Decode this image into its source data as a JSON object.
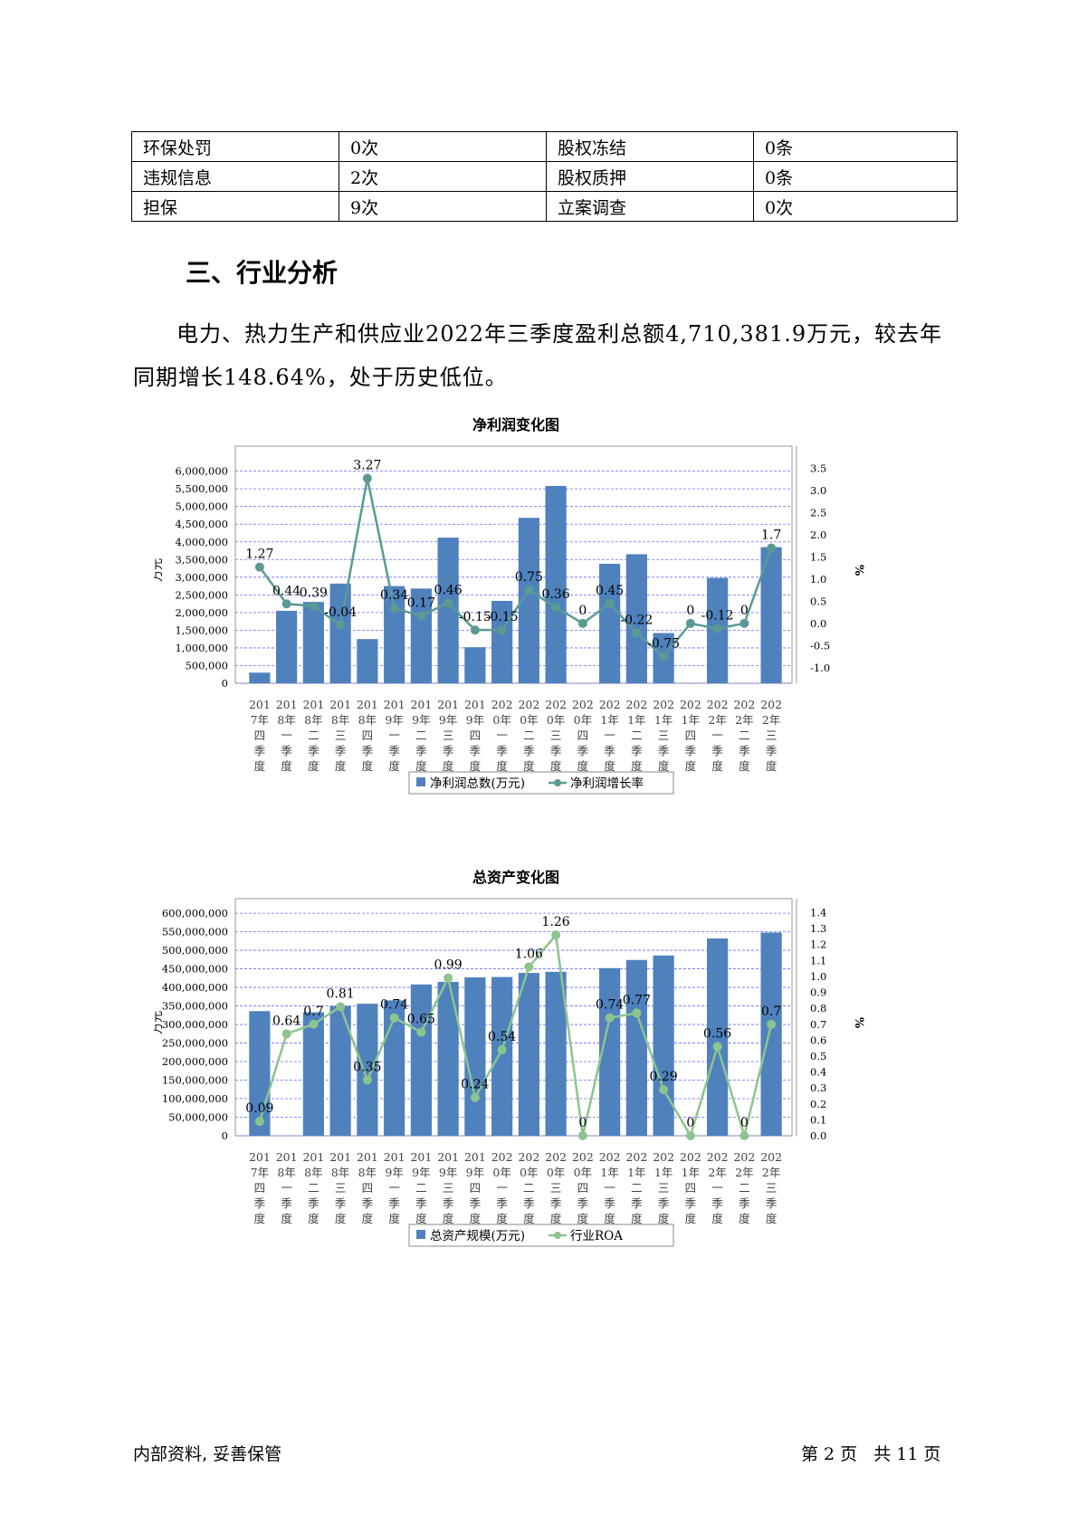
{
  "table": {
    "rows": [
      [
        "环保处罚",
        "0次",
        "股权冻结",
        "0条"
      ],
      [
        "违规信息",
        "2次",
        "股权质押",
        "0条"
      ],
      [
        "担保",
        "9次",
        "立案调查",
        "0次"
      ]
    ]
  },
  "section_title": "三、行业分析",
  "paragraph": "电力、热力生产和供应业2022年三季度盈利总额4,710,381.9万元，较去年同期增长148.64%，处于历史低位。",
  "colors": {
    "bar": "#4f81bd",
    "line1": "#5a9a94",
    "line2": "#8cc48e",
    "grid": "#6a6aff"
  },
  "chart_data": [
    {
      "type": "bar",
      "title": "净利润变化图",
      "categories": [
        "2017年四季度",
        "2018年一季度",
        "2018年二季度",
        "2018年三季度",
        "2018年四季度",
        "2019年一季度",
        "2019年二季度",
        "2019年三季度",
        "2019年四季度",
        "2020年一季度",
        "2020年二季度",
        "2020年三季度",
        "2020年四季度",
        "2021年一季度",
        "2021年二季度",
        "2021年三季度",
        "2021年四季度",
        "2022年一季度",
        "2022年二季度",
        "2022年三季度"
      ],
      "category_labels": [
        [
          "201",
          "7年",
          "四",
          "季",
          "度"
        ],
        [
          "201",
          "8年",
          "一",
          "季",
          "度"
        ],
        [
          "201",
          "8年",
          "二",
          "季",
          "度"
        ],
        [
          "201",
          "8年",
          "三",
          "季",
          "度"
        ],
        [
          "201",
          "8年",
          "四",
          "季",
          "度"
        ],
        [
          "201",
          "9年",
          "一",
          "季",
          "度"
        ],
        [
          "201",
          "9年",
          "二",
          "季",
          "度"
        ],
        [
          "201",
          "9年",
          "三",
          "季",
          "度"
        ],
        [
          "201",
          "9年",
          "四",
          "季",
          "度"
        ],
        [
          "202",
          "0年",
          "一",
          "季",
          "度"
        ],
        [
          "202",
          "0年",
          "二",
          "季",
          "度"
        ],
        [
          "202",
          "0年",
          "三",
          "季",
          "度"
        ],
        [
          "202",
          "0年",
          "四",
          "季",
          "度"
        ],
        [
          "202",
          "1年",
          "一",
          "季",
          "度"
        ],
        [
          "202",
          "1年",
          "二",
          "季",
          "度"
        ],
        [
          "202",
          "1年",
          "三",
          "季",
          "度"
        ],
        [
          "202",
          "1年",
          "四",
          "季",
          "度"
        ],
        [
          "202",
          "2年",
          "一",
          "季",
          "度"
        ],
        [
          "202",
          "2年",
          "二",
          "季",
          "度"
        ],
        [
          "202",
          "2年",
          "三",
          "季",
          "度"
        ]
      ],
      "series": [
        {
          "name": "净利润总数(万元)",
          "type": "bar",
          "values": [
            300000,
            2050000,
            2300000,
            2820000,
            1250000,
            2750000,
            2680000,
            4120000,
            1020000,
            2330000,
            4680000,
            5580000,
            null,
            3380000,
            3650000,
            1420000,
            null,
            2980000,
            null,
            3850000
          ]
        },
        {
          "name": "净利润增长率",
          "type": "line",
          "values": [
            1.27,
            0.44,
            0.39,
            -0.04,
            3.27,
            0.34,
            0.17,
            0.46,
            -0.15,
            -0.15,
            0.75,
            0.36,
            0,
            0.45,
            -0.22,
            -0.75,
            0,
            -0.12,
            0,
            1.7
          ]
        }
      ],
      "ylabel": "万元",
      "y2label": "%",
      "ylim": [
        0,
        6400000
      ],
      "yticks": [
        "0",
        "500,000",
        "1,000,000",
        "1,500,000",
        "2,000,000",
        "2,500,000",
        "3,000,000",
        "3,500,000",
        "4,000,000",
        "4,500,000",
        "5,000,000",
        "5,500,000",
        "6,000,000"
      ],
      "y2lim": [
        -1.35,
        3.75
      ],
      "y2ticks": [
        "-1.0",
        "-0.5",
        "0.0",
        "0.5",
        "1.0",
        "1.5",
        "2.0",
        "2.5",
        "3.0",
        "3.5"
      ],
      "legend_position": "bottom"
    },
    {
      "type": "bar",
      "title": "总资产变化图",
      "categories": [
        "2017年四季度",
        "2018年一季度",
        "2018年二季度",
        "2018年三季度",
        "2018年四季度",
        "2019年一季度",
        "2019年二季度",
        "2019年三季度",
        "2019年四季度",
        "2020年一季度",
        "2020年二季度",
        "2020年三季度",
        "2020年四季度",
        "2021年一季度",
        "2021年二季度",
        "2021年三季度",
        "2021年四季度",
        "2022年一季度",
        "2022年二季度",
        "2022年三季度"
      ],
      "category_labels": [
        [
          "201",
          "7年",
          "四",
          "季",
          "度"
        ],
        [
          "201",
          "8年",
          "一",
          "季",
          "度"
        ],
        [
          "201",
          "8年",
          "二",
          "季",
          "度"
        ],
        [
          "201",
          "8年",
          "三",
          "季",
          "度"
        ],
        [
          "201",
          "8年",
          "四",
          "季",
          "度"
        ],
        [
          "201",
          "9年",
          "一",
          "季",
          "度"
        ],
        [
          "201",
          "9年",
          "二",
          "季",
          "度"
        ],
        [
          "201",
          "9年",
          "三",
          "季",
          "度"
        ],
        [
          "201",
          "9年",
          "四",
          "季",
          "度"
        ],
        [
          "202",
          "0年",
          "一",
          "季",
          "度"
        ],
        [
          "202",
          "0年",
          "二",
          "季",
          "度"
        ],
        [
          "202",
          "0年",
          "三",
          "季",
          "度"
        ],
        [
          "202",
          "0年",
          "四",
          "季",
          "度"
        ],
        [
          "202",
          "1年",
          "一",
          "季",
          "度"
        ],
        [
          "202",
          "1年",
          "二",
          "季",
          "度"
        ],
        [
          "202",
          "1年",
          "三",
          "季",
          "度"
        ],
        [
          "202",
          "1年",
          "四",
          "季",
          "度"
        ],
        [
          "202",
          "2年",
          "一",
          "季",
          "度"
        ],
        [
          "202",
          "2年",
          "二",
          "季",
          "度"
        ],
        [
          "202",
          "2年",
          "三",
          "季",
          "度"
        ]
      ],
      "series": [
        {
          "name": "总资产规模(万元)",
          "type": "bar",
          "values": [
            336000000,
            null,
            333000000,
            350000000,
            356000000,
            365000000,
            408000000,
            415000000,
            427000000,
            428000000,
            439000000,
            442000000,
            null,
            452000000,
            474000000,
            486000000,
            null,
            532000000,
            null,
            548000000
          ]
        },
        {
          "name": "行业ROA",
          "type": "line",
          "values": [
            0.09,
            0.64,
            0.7,
            0.81,
            0.35,
            0.74,
            0.65,
            0.99,
            0.24,
            0.54,
            1.06,
            1.26,
            0,
            0.74,
            0.77,
            0.29,
            0,
            0.56,
            0,
            0.7
          ]
        }
      ],
      "ylabel": "万元",
      "y2label": "%",
      "ylim": [
        0,
        610000000
      ],
      "yticks": [
        "0",
        "50,000,000",
        "100,000,000",
        "150,000,000",
        "200,000,000",
        "250,000,000",
        "300,000,000",
        "350,000,000",
        "400,000,000",
        "450,000,000",
        "500,000,000",
        "550,000,000",
        "600,000,000"
      ],
      "y2lim": [
        0,
        1.42
      ],
      "y2ticks": [
        "0.0",
        "0.1",
        "0.2",
        "0.3",
        "0.4",
        "0.5",
        "0.6",
        "0.7",
        "0.8",
        "0.9",
        "1.0",
        "1.1",
        "1.2",
        "1.3",
        "1.4"
      ],
      "legend_position": "bottom"
    }
  ],
  "footer": {
    "left": "内部资料, 妥善保管",
    "page_prefix": "第",
    "page_num": "2",
    "page_mid": "页",
    "total_prefix": "共",
    "total_num": "11",
    "total_suffix": "页"
  }
}
